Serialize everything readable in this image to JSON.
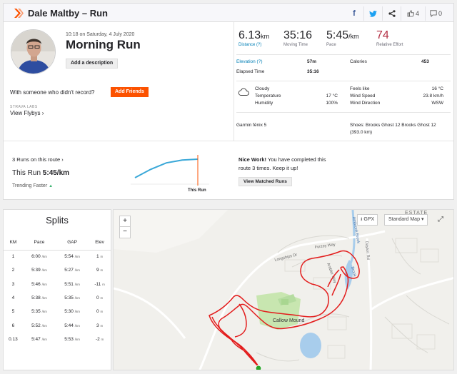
{
  "header": {
    "title": "Dale Maltby – Run",
    "kudos_count": "4",
    "comment_count": "0"
  },
  "activity": {
    "date": "10:18 on Saturday, 4 July 2020",
    "title": "Morning Run",
    "description_button": "Add a description",
    "with_someone_text": "With someone who didn't record?",
    "add_friends_button": "Add Friends",
    "labs_label": "STRAVA LABS",
    "view_flybys": "View Flybys"
  },
  "stats": {
    "distance_value": "6.13",
    "distance_unit": "km",
    "distance_label": "Distance (?)",
    "moving_time_value": "35:16",
    "moving_time_label": "Moving Time",
    "pace_value": "5:45",
    "pace_unit": "/km",
    "pace_label": "Pace",
    "effort_value": "74",
    "effort_label": "Relative Effort"
  },
  "details": {
    "elevation_label": "Elevation (?)",
    "elevation_value": "57m",
    "calories_label": "Calories",
    "calories_value": "453",
    "elapsed_label": "Elapsed Time",
    "elapsed_value": "35:16"
  },
  "weather": {
    "condition": "Cloudy",
    "temperature_label": "Temperature",
    "temperature_value": "17 °C",
    "humidity_label": "Humidity",
    "humidity_value": "100%",
    "feels_like_label": "Feels like",
    "feels_like_value": "16 °C",
    "wind_speed_label": "Wind Speed",
    "wind_speed_value": "23.8 km/h",
    "wind_direction_label": "Wind Direction",
    "wind_direction_value": "WSW"
  },
  "gear": {
    "device": "Garmin fēnix 5",
    "shoes_line1": "Shoes: Brooks Ghost 12 Brooks Ghost 12",
    "shoes_line2": "(393.0 km)"
  },
  "route": {
    "runs_on_route": "3 Runs on this route",
    "this_run_prefix": "This Run",
    "this_run_pace": "5:45/km",
    "trending": "Trending Faster",
    "chart_label": "This Run",
    "nice_work_bold": "Nice Work!",
    "nice_work_text": "You have completed this route 3 times. Keep it up!",
    "matched_button": "View Matched Runs",
    "trend_values": [
      0.0,
      0.45,
      0.8,
      0.95,
      1.0
    ]
  },
  "splits": {
    "title": "Splits",
    "headers": [
      "KM",
      "Pace",
      "GAP",
      "Elev"
    ],
    "rows": [
      {
        "km": "1",
        "pace": "6:00",
        "gap": "5:54",
        "elev": "1"
      },
      {
        "km": "2",
        "pace": "5:39",
        "gap": "5:27",
        "elev": "9"
      },
      {
        "km": "3",
        "pace": "5:46",
        "gap": "5:51",
        "elev": "-11"
      },
      {
        "km": "4",
        "pace": "5:38",
        "gap": "5:35",
        "elev": "0"
      },
      {
        "km": "5",
        "pace": "5:35",
        "gap": "5:30",
        "elev": "0"
      },
      {
        "km": "6",
        "pace": "5:52",
        "gap": "5:44",
        "elev": "3"
      },
      {
        "km": "0.13",
        "pace": "5:47",
        "gap": "5:53",
        "elev": "-2"
      }
    ],
    "pace_unit": "/km",
    "elev_unit": "m"
  },
  "map": {
    "zoom_in": "+",
    "zoom_out": "−",
    "gpx_label": "GPX",
    "map_type": "Standard Map",
    "labels": {
      "estate": "ESTATE",
      "furzey": "Furzey Way",
      "longships": "Longships Dr",
      "ambrook": "Ambrook Brook",
      "dayton": "Dayton Rd",
      "callow": "Callow Mound",
      "amble": "Ambler Way",
      "brook2": "Brook"
    }
  },
  "colors": {
    "brand": "#fc5200",
    "link": "#007fb6",
    "effort": "#b32f44",
    "route": "#e31c1c",
    "trend": "#3aa8d8"
  }
}
